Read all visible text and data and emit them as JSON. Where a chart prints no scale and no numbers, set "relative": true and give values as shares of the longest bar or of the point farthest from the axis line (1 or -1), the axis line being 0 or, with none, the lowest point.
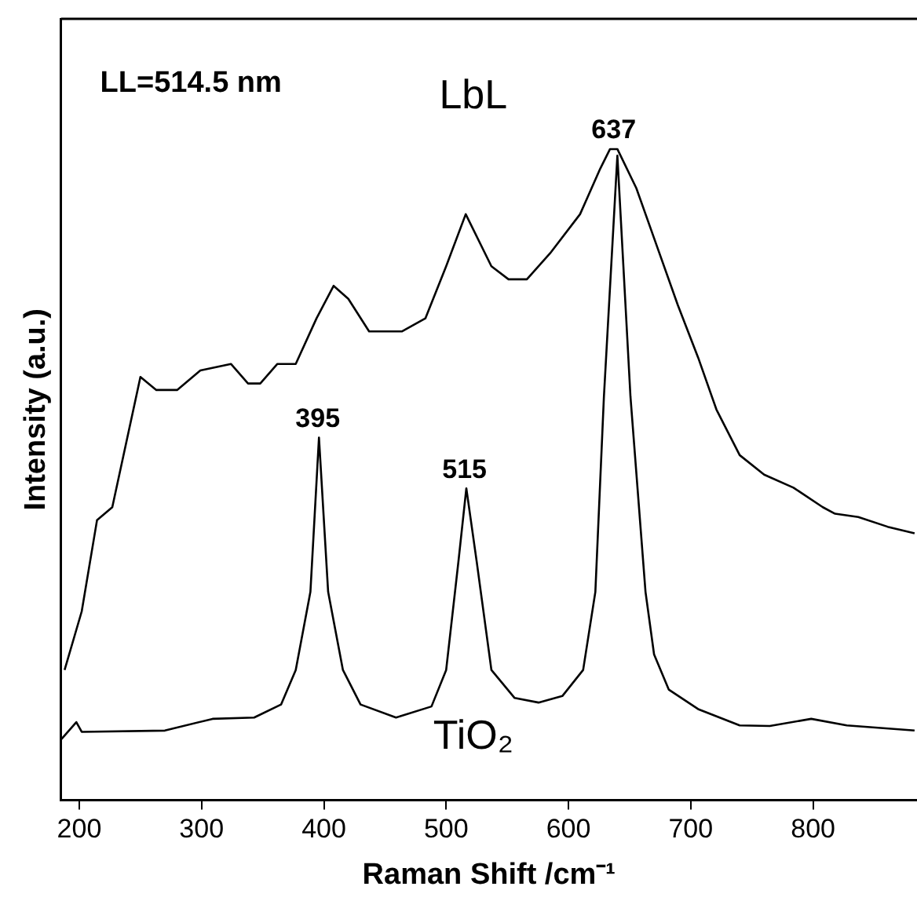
{
  "chart_data": {
    "type": "line",
    "xlabel": "Raman Shift /cm⁻¹",
    "ylabel": "Intensity (a.u.)",
    "relative": true,
    "xlim": [
      185,
      885
    ],
    "xticks": [
      200,
      300,
      400,
      500,
      600,
      700,
      800
    ],
    "grid": false,
    "legend": false,
    "marker": "none",
    "line_style": "solid",
    "annotations": [
      "LL=514.5 nm",
      {
        "text": "395",
        "x": 395,
        "y": 0.557
      },
      {
        "text": "515",
        "x": 515,
        "y": 0.479
      },
      {
        "text": "637",
        "x": 637,
        "y": 1.0
      }
    ],
    "series": [
      {
        "name": "LbL",
        "color": "#000000",
        "x": [
          188,
          202,
          214.5,
          227,
          250,
          263,
          280,
          299,
          324,
          338,
          348,
          362,
          377,
          394,
          408,
          420,
          437,
          464,
          483,
          500,
          516,
          537,
          551,
          566,
          585,
          609.5,
          626,
          634,
          640,
          655.5,
          672.5,
          689.5,
          706,
          721,
          740,
          760,
          784,
          808,
          818,
          837,
          861,
          883
        ],
        "values": [
          0.2,
          0.29,
          0.43,
          0.45,
          0.65,
          0.63,
          0.63,
          0.66,
          0.67,
          0.64,
          0.64,
          0.67,
          0.67,
          0.74,
          0.79,
          0.77,
          0.72,
          0.72,
          0.74,
          0.82,
          0.9,
          0.82,
          0.8,
          0.8,
          0.84,
          0.9,
          0.97,
          1.0,
          1.0,
          0.94,
          0.85,
          0.76,
          0.68,
          0.6,
          0.53,
          0.5,
          0.48,
          0.45,
          0.44,
          0.435,
          0.42,
          0.41
        ]
      },
      {
        "name": "TiO₂",
        "color": "#000000",
        "x": [
          185.5,
          197.6,
          202,
          270,
          309,
          343,
          365,
          377,
          389,
          396,
          403.5,
          415.6,
          430,
          459,
          488,
          500,
          510,
          516.5,
          525,
          537,
          556,
          575.5,
          595,
          612,
          622,
          629,
          640,
          650.7,
          663,
          670,
          682,
          706,
          740,
          764.6,
          798.5,
          827.6,
          883
        ],
        "values": [
          0.094,
          0.12,
          0.105,
          0.107,
          0.125,
          0.127,
          0.147,
          0.2,
          0.32,
          0.557,
          0.32,
          0.2,
          0.147,
          0.127,
          0.144,
          0.2,
          0.366,
          0.479,
          0.366,
          0.2,
          0.157,
          0.15,
          0.16,
          0.2,
          0.32,
          0.62,
          0.99,
          0.62,
          0.32,
          0.224,
          0.17,
          0.14,
          0.115,
          0.114,
          0.125,
          0.115,
          0.107
        ]
      }
    ]
  }
}
